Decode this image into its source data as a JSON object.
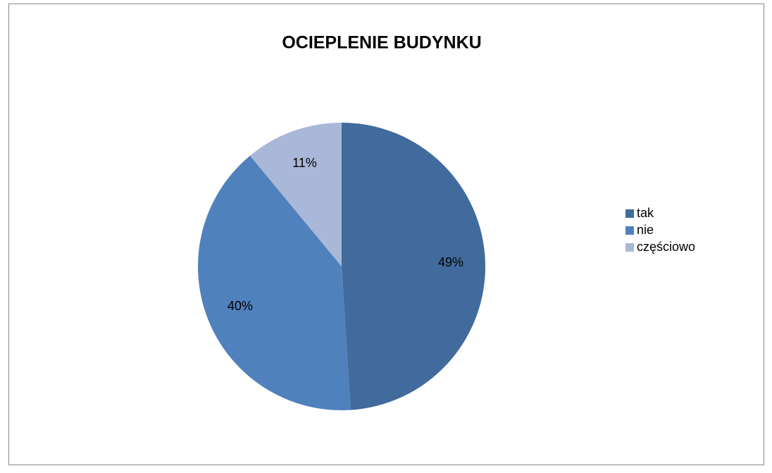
{
  "chart_data": {
    "type": "pie",
    "title": "OCIEPLENIE BUDYNKU",
    "categories": [
      "tak",
      "nie",
      "częściowo"
    ],
    "values": [
      49,
      40,
      11
    ],
    "value_labels": [
      "49%",
      "40%",
      "11%"
    ],
    "colors": [
      "#406b9c",
      "#4f81bd",
      "#a9b8d8"
    ],
    "legend": "right"
  }
}
